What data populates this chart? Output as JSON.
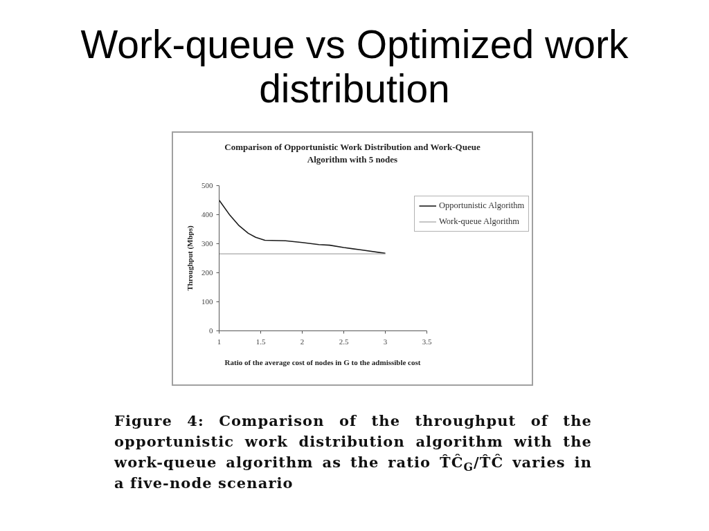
{
  "chart_data": {
    "type": "line",
    "title": "Work-queue vs Optimized work distribution",
    "subtitle": "Comparison of Opportunistic Work Distribution and Work-Queue Algorithm with 5 nodes",
    "xlabel": "Ratio of the average cost of nodes in G to the admissible cost",
    "ylabel": "Throughput (Mbps)",
    "annotations": [
      "Figure 4: Comparison of the throughput of the\nopportunistic work distribution algorithm with the\nwork-queue algorithm as the ratio T̂Ĉ$_{G}$/T̂Ĉ varies in\na five-node scenario"
    ],
    "xlim": [
      1,
      3.5
    ],
    "xticks": [
      1,
      1.5,
      2,
      2.5,
      3,
      3.5
    ],
    "ylim": [
      0,
      500
    ],
    "yticks": [
      0,
      100,
      200,
      300,
      400,
      500
    ],
    "grid": false,
    "legend": "top right",
    "marker": "none",
    "line_style": "solid",
    "series": [
      {
        "name": "Opportunistic Algorithm",
        "color": "#1a1a1a",
        "x": [
          1,
          1.13,
          1.24,
          1.35,
          1.44,
          1.55,
          1.8,
          2.0,
          2.2,
          2.33,
          2.5,
          2.7,
          3.0
        ],
        "values": [
          450,
          398,
          362,
          336,
          322,
          312,
          310,
          304,
          297,
          295,
          287,
          279,
          267
        ]
      },
      {
        "name": "Work-queue Algorithm",
        "color": "#a6a6a6",
        "x": [
          1,
          3
        ],
        "values": [
          265,
          265
        ]
      }
    ]
  }
}
